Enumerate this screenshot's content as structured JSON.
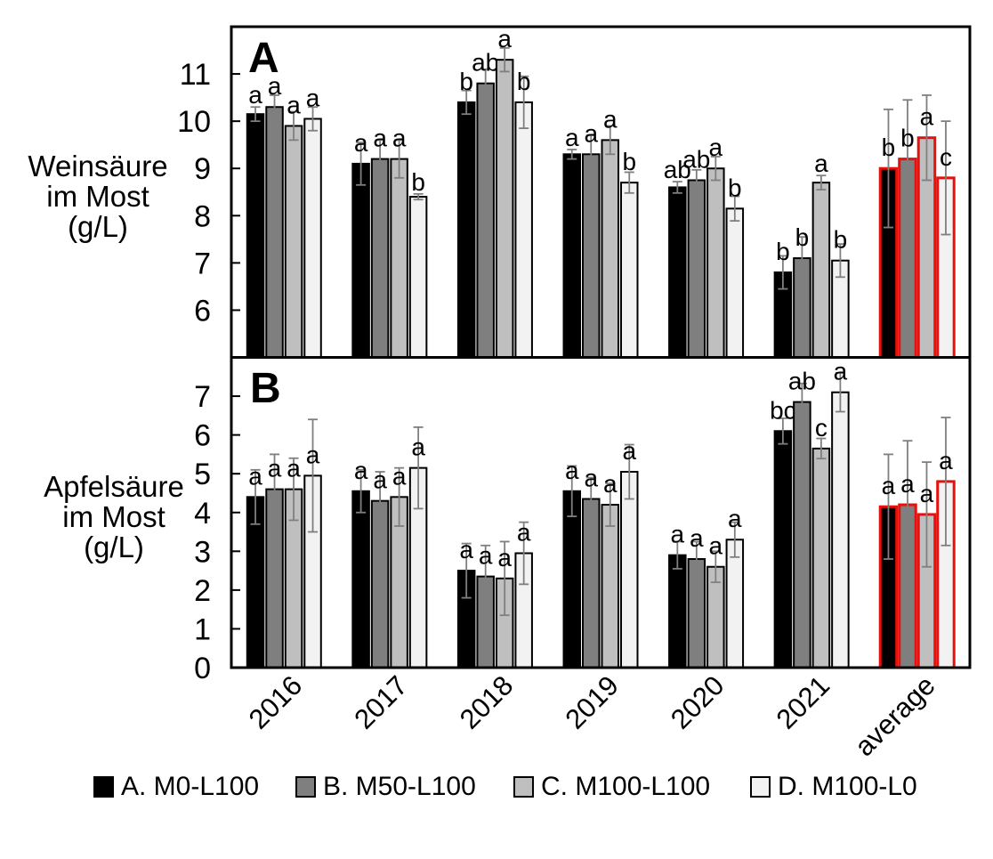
{
  "figure_background": "#ffffff",
  "highlight": {
    "category": "average",
    "outline_color": "#e8100c"
  },
  "error_bar_color": "#7f7f7f",
  "axis_color": "#000000",
  "chart_data": [
    {
      "type": "bar",
      "panel_label": "A",
      "ylabel": "Weinsäure im Most (g/L)",
      "ylabel_lines": [
        "Weinsäure",
        "im Most",
        "(g/L)"
      ],
      "xlabel": "",
      "categories": [
        "2016",
        "2017",
        "2018",
        "2019",
        "2020",
        "2021",
        "average"
      ],
      "ylim": [
        5,
        12
      ],
      "yticks": [
        6,
        7,
        8,
        9,
        10,
        11
      ],
      "grid": false,
      "legend_position": "bottom",
      "highlight_category": "average",
      "series": [
        {
          "name": "A. M0-L100",
          "color": "#000000",
          "values": [
            10.15,
            9.1,
            10.4,
            9.3,
            8.6,
            6.8,
            9.0
          ],
          "errors": [
            0.15,
            0.45,
            0.25,
            0.1,
            0.12,
            0.35,
            1.25
          ],
          "sig_letters": [
            "a",
            "a",
            "b",
            "a",
            "ab",
            "b",
            "b"
          ]
        },
        {
          "name": "B. M50-L100",
          "color": "#7f7f7f",
          "values": [
            10.3,
            9.2,
            10.8,
            9.3,
            8.75,
            7.1,
            9.2
          ],
          "errors": [
            0.25,
            0.4,
            0.3,
            0.4,
            0.22,
            0.45,
            1.25
          ],
          "sig_letters": [
            "a",
            "a",
            "ab",
            "a",
            "ab",
            "b",
            "b"
          ]
        },
        {
          "name": "C. M100-L100",
          "color": "#bfbfbf",
          "values": [
            9.9,
            9.2,
            11.3,
            9.6,
            9.0,
            8.7,
            9.65
          ],
          "errors": [
            0.3,
            0.4,
            0.25,
            0.3,
            0.25,
            0.15,
            0.9
          ],
          "sig_letters": [
            "a",
            "a",
            "a",
            "a",
            "a",
            "a",
            "a"
          ]
        },
        {
          "name": "D. M100-L0",
          "color": "#f2f2f2",
          "values": [
            10.05,
            8.4,
            10.4,
            8.7,
            8.15,
            7.05,
            8.8
          ],
          "errors": [
            0.25,
            0.06,
            0.55,
            0.22,
            0.26,
            0.35,
            1.2
          ],
          "sig_letters": [
            "a",
            "b",
            "b",
            "b",
            "b",
            "b",
            "c"
          ]
        }
      ]
    },
    {
      "type": "bar",
      "panel_label": "B",
      "ylabel": "Apfelsäure im Most (g/L)",
      "ylabel_lines": [
        "Apfelsäure",
        "im Most",
        "(g/L)"
      ],
      "xlabel": "",
      "categories": [
        "2016",
        "2017",
        "2018",
        "2019",
        "2020",
        "2021",
        "average"
      ],
      "ylim": [
        0,
        8
      ],
      "yticks": [
        0,
        1,
        2,
        3,
        4,
        5,
        6,
        7
      ],
      "grid": false,
      "legend_position": "bottom",
      "highlight_category": "average",
      "series": [
        {
          "name": "A. M0-L100",
          "color": "#000000",
          "values": [
            4.4,
            4.55,
            2.5,
            4.55,
            2.9,
            6.1,
            4.15
          ],
          "errors": [
            0.7,
            0.55,
            0.7,
            0.65,
            0.35,
            0.33,
            1.35
          ],
          "sig_letters": [
            "a",
            "a",
            "a",
            "a",
            "a",
            "bc",
            "a"
          ]
        },
        {
          "name": "B. M50-L100",
          "color": "#7f7f7f",
          "values": [
            4.6,
            4.3,
            2.35,
            4.35,
            2.8,
            6.85,
            4.2
          ],
          "errors": [
            0.9,
            0.75,
            0.8,
            0.55,
            0.45,
            0.48,
            1.65
          ],
          "sig_letters": [
            "a",
            "a",
            "a",
            "a",
            "a",
            "ab",
            "a"
          ]
        },
        {
          "name": "C. M100-L100",
          "color": "#bfbfbf",
          "values": [
            4.6,
            4.4,
            2.3,
            4.2,
            2.6,
            5.65,
            3.95
          ],
          "errors": [
            0.8,
            0.75,
            0.95,
            0.55,
            0.4,
            0.26,
            1.35
          ],
          "sig_letters": [
            "a",
            "a",
            "a",
            "a",
            "a",
            "c",
            "a"
          ]
        },
        {
          "name": "D. M100-L0",
          "color": "#f2f2f2",
          "values": [
            4.95,
            5.15,
            2.95,
            5.05,
            3.3,
            7.1,
            4.8
          ],
          "errors": [
            1.45,
            1.05,
            0.8,
            0.7,
            0.45,
            0.5,
            1.65
          ],
          "sig_letters": [
            "a",
            "a",
            "a",
            "a",
            "a",
            "a",
            "a"
          ]
        }
      ]
    }
  ],
  "legend": {
    "entries": [
      "A. M0-L100",
      "B. M50-L100",
      "C. M100-L100",
      "D. M100-L0"
    ]
  }
}
